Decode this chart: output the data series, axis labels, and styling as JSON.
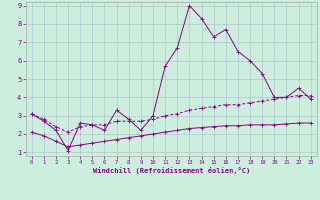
{
  "xlabel": "Windchill (Refroidissement éolien,°C)",
  "bg_color": "#cceedd",
  "line_color": "#880088",
  "grid_color": "#aabbcc",
  "xlim": [
    -0.5,
    23.5
  ],
  "ylim": [
    0.8,
    9.2
  ],
  "xticks": [
    0,
    1,
    2,
    3,
    4,
    5,
    6,
    7,
    8,
    9,
    10,
    11,
    12,
    13,
    14,
    15,
    16,
    17,
    18,
    19,
    20,
    21,
    22,
    23
  ],
  "yticks": [
    1,
    2,
    3,
    4,
    5,
    6,
    7,
    8,
    9
  ],
  "line1_x": [
    0,
    1,
    2,
    3,
    4,
    5,
    6,
    7,
    8,
    9,
    10,
    11,
    12,
    13,
    14,
    15,
    16,
    17,
    18,
    19,
    20,
    21,
    22,
    23
  ],
  "line1_y": [
    3.1,
    2.7,
    2.2,
    1.1,
    2.6,
    2.5,
    2.2,
    3.3,
    2.8,
    2.2,
    3.0,
    5.7,
    6.7,
    9.0,
    8.3,
    7.3,
    7.7,
    6.5,
    6.0,
    5.3,
    4.0,
    4.0,
    4.5,
    3.9
  ],
  "line2_x": [
    0,
    1,
    2,
    3,
    4,
    5,
    6,
    7,
    8,
    9,
    10,
    11,
    12,
    13,
    14,
    15,
    16,
    17,
    18,
    19,
    20,
    21,
    22,
    23
  ],
  "line2_y": [
    3.1,
    2.8,
    2.4,
    2.1,
    2.4,
    2.5,
    2.5,
    2.7,
    2.7,
    2.7,
    2.8,
    3.0,
    3.1,
    3.3,
    3.4,
    3.5,
    3.6,
    3.6,
    3.7,
    3.8,
    3.9,
    4.0,
    4.1,
    4.1
  ],
  "line3_x": [
    0,
    1,
    2,
    3,
    4,
    5,
    6,
    7,
    8,
    9,
    10,
    11,
    12,
    13,
    14,
    15,
    16,
    17,
    18,
    19,
    20,
    21,
    22,
    23
  ],
  "line3_y": [
    2.1,
    1.9,
    1.6,
    1.3,
    1.4,
    1.5,
    1.6,
    1.7,
    1.8,
    1.9,
    2.0,
    2.1,
    2.2,
    2.3,
    2.35,
    2.4,
    2.45,
    2.45,
    2.5,
    2.5,
    2.5,
    2.55,
    2.6,
    2.6
  ]
}
